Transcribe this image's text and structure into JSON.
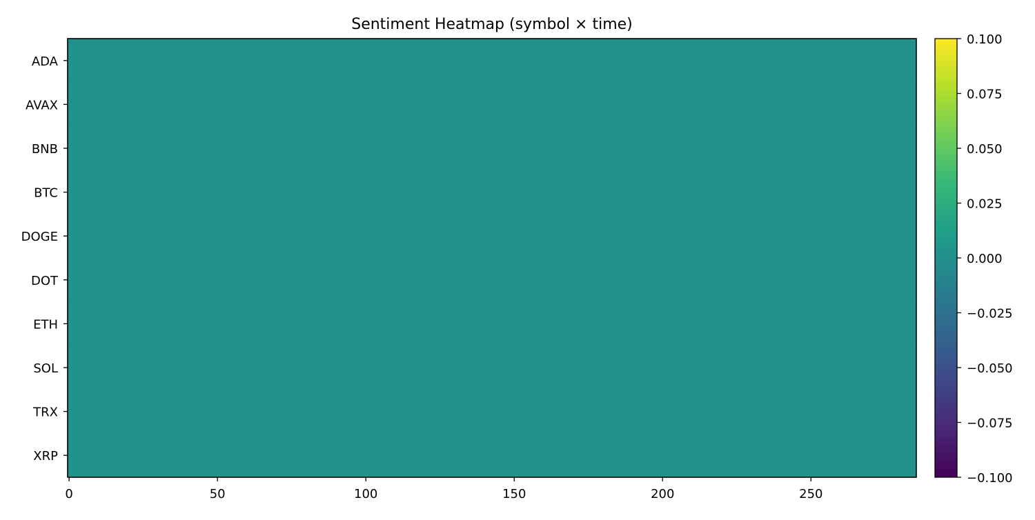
{
  "chart_data": {
    "type": "heatmap",
    "title": "Sentiment Heatmap (symbol × time)",
    "xlabel": "",
    "ylabel": "",
    "rows": [
      "ADA",
      "AVAX",
      "BNB",
      "BTC",
      "DOGE",
      "DOT",
      "ETH",
      "SOL",
      "TRX",
      "XRP"
    ],
    "x_range": [
      -0.5,
      285.5
    ],
    "x_ticks": [
      0,
      50,
      100,
      150,
      200,
      250
    ],
    "columns": 286,
    "uniform_value": 0.0,
    "colormap": "viridis",
    "cell_color": "#21918c",
    "colorbar": {
      "range": [
        -0.1,
        0.1
      ],
      "ticks": [
        0.1,
        0.075,
        0.05,
        0.025,
        0.0,
        -0.025,
        -0.05,
        -0.075,
        -0.1
      ],
      "tick_labels": [
        "0.100",
        "0.075",
        "0.050",
        "0.025",
        "0.000",
        "−0.025",
        "−0.050",
        "−0.075",
        "−0.100"
      ],
      "colors": [
        "#440154",
        "#482878",
        "#3e4989",
        "#31688e",
        "#26828e",
        "#1f9e89",
        "#35b779",
        "#6ece58",
        "#b5de2b",
        "#fde725"
      ]
    },
    "grid": false
  }
}
